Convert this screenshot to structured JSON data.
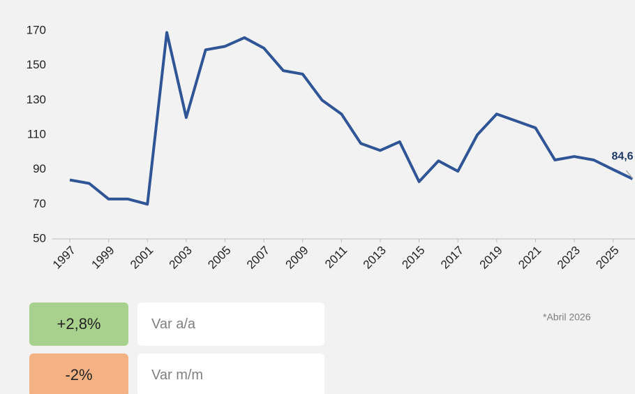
{
  "chart_data": {
    "type": "line",
    "x": [
      1997,
      1998,
      1999,
      2000,
      2001,
      2002,
      2003,
      2004,
      2005,
      2006,
      2007,
      2008,
      2009,
      2010,
      2011,
      2012,
      2013,
      2014,
      2015,
      2016,
      2017,
      2018,
      2019,
      2020,
      2021,
      2022,
      2023,
      2024,
      2025,
      2026
    ],
    "series": [
      {
        "color": "#2f5597",
        "values": [
          84,
          82,
          73,
          73,
          70,
          169,
          120,
          159,
          161,
          166,
          160,
          147,
          145,
          130,
          122,
          105,
          101,
          106,
          83,
          95,
          89,
          110,
          122,
          118,
          114,
          95.5,
          97.5,
          95.5,
          90,
          84.6
        ],
        "value_labels": [
          null,
          null,
          null,
          null,
          null,
          null,
          null,
          null,
          null,
          null,
          null,
          null,
          null,
          null,
          null,
          null,
          null,
          null,
          null,
          null,
          null,
          null,
          null,
          null,
          null,
          null,
          null,
          null,
          null,
          "84,6"
        ]
      }
    ],
    "xlim": [
      1996.1,
      2026.2
    ],
    "xticks": [
      1997,
      1999,
      2001,
      2003,
      2005,
      2007,
      2009,
      2011,
      2013,
      2015,
      2017,
      2019,
      2021,
      2023,
      2025
    ],
    "ylim": [
      50,
      170
    ],
    "yticks": [
      50,
      70,
      90,
      110,
      130,
      150,
      170
    ],
    "grid": false,
    "note": "*Abril 2026"
  },
  "cards": [
    {
      "value": "+2,8%",
      "label": "Var a/a",
      "color": "#a9d18e"
    },
    {
      "value": "-2%",
      "label": "Var m/m",
      "color": "#f4b183"
    }
  ]
}
